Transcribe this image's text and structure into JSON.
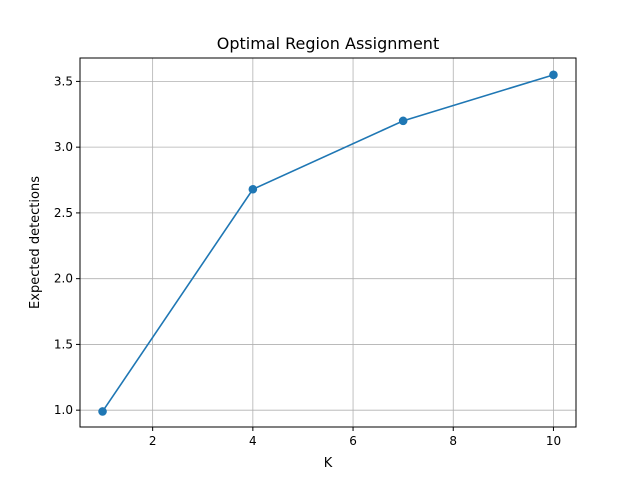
{
  "chart_data": {
    "type": "line",
    "title": "Optimal Region Assignment",
    "xlabel": "K",
    "ylabel": "Expected detections",
    "x": [
      1,
      4,
      7,
      10
    ],
    "series": [
      {
        "values": [
          0.99,
          2.68,
          3.2,
          3.55
        ],
        "color": "#1f77b4",
        "marker": "circle"
      }
    ],
    "xlim": [
      0.55,
      10.45
    ],
    "ylim": [
      0.872,
      3.678
    ],
    "xticks": [
      2,
      4,
      6,
      8,
      10
    ],
    "yticks": [
      1.0,
      1.5,
      2.0,
      2.5,
      3.0,
      3.5
    ],
    "xtick_labels": [
      "2",
      "4",
      "6",
      "8",
      "10"
    ],
    "ytick_labels": [
      "1.0",
      "1.5",
      "2.0",
      "2.5",
      "3.0",
      "3.5"
    ],
    "grid": true
  }
}
